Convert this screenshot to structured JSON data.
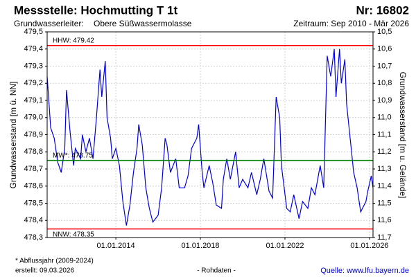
{
  "chart_data": {
    "type": "line",
    "title": "Messstelle: Hochmutting T 1t",
    "number": "Nr: 16802",
    "aquifer_label": "Grundwasserleiter:",
    "aquifer": "Obere Süßwassermolasse",
    "period": "Zeitraum: Sep 2010 - Mär 2026",
    "ylabel": "Grundwasserstand [m ü. NN]",
    "y2label": "Grundwasserstand [m u. Gelände]",
    "footnote": "* Abflussjahr (2009-2024)",
    "created": "erstellt:  09.03.2026",
    "note": "- Rohdaten -",
    "source": "Quelle: www.lfu.bayern.de",
    "grid": true,
    "xlim": [
      "2010-10",
      "2026-03"
    ],
    "xticks": [
      {
        "value": "2014-01-01",
        "label": "01.01.2014"
      },
      {
        "value": "2018-01-01",
        "label": "01.01.2018"
      },
      {
        "value": "2022-01-01",
        "label": "01.01.2022"
      },
      {
        "value": "2026-01-01",
        "label": "01.01.2026"
      }
    ],
    "ylim": [
      478.3,
      479.5
    ],
    "yticks": [
      {
        "value": 478.3,
        "label": "478,3"
      },
      {
        "value": 478.4,
        "label": "478,4"
      },
      {
        "value": 478.5,
        "label": "478,5"
      },
      {
        "value": 478.6,
        "label": "478,6"
      },
      {
        "value": 478.7,
        "label": "478,7"
      },
      {
        "value": 478.8,
        "label": "478,8"
      },
      {
        "value": 478.9,
        "label": "478,9"
      },
      {
        "value": 479.0,
        "label": "479,0"
      },
      {
        "value": 479.1,
        "label": "479,1"
      },
      {
        "value": 479.2,
        "label": "479,2"
      },
      {
        "value": 479.3,
        "label": "479,3"
      },
      {
        "value": 479.4,
        "label": "479,4"
      },
      {
        "value": 479.5,
        "label": "479,5"
      }
    ],
    "y2lim": [
      11.7,
      10.5
    ],
    "y2ticks": [
      {
        "value": 10.5,
        "label": "10,5"
      },
      {
        "value": 10.6,
        "label": "10,6"
      },
      {
        "value": 10.7,
        "label": "10,7"
      },
      {
        "value": 10.8,
        "label": "10,8"
      },
      {
        "value": 10.9,
        "label": "10,9"
      },
      {
        "value": 11.0,
        "label": "11,0"
      },
      {
        "value": 11.1,
        "label": "11,1"
      },
      {
        "value": 11.2,
        "label": "11,2"
      },
      {
        "value": 11.3,
        "label": "11,3"
      },
      {
        "value": 11.4,
        "label": "11,4"
      },
      {
        "value": 11.5,
        "label": "11,5"
      },
      {
        "value": 11.6,
        "label": "11,6"
      },
      {
        "value": 11.7,
        "label": "11,7"
      }
    ],
    "reference_lines": [
      {
        "label": "HHW: 479.42",
        "value": 479.42,
        "color": "#ff0000"
      },
      {
        "label": "MW*: 478.75",
        "value": 478.75,
        "color": "#008000"
      },
      {
        "label": "NNW: 478.35",
        "value": 478.35,
        "color": "#ff0000"
      }
    ],
    "x": [
      "2010-10",
      "2010-12",
      "2011-02",
      "2011-04",
      "2011-06",
      "2011-08",
      "2011-09",
      "2011-11",
      "2012-01",
      "2012-02",
      "2012-05",
      "2012-06",
      "2012-08",
      "2012-10",
      "2012-12",
      "2013-02",
      "2013-04",
      "2013-05",
      "2013-07",
      "2013-08",
      "2013-10",
      "2013-11",
      "2014-01",
      "2014-03",
      "2014-05",
      "2014-07",
      "2014-09",
      "2014-11",
      "2015-01",
      "2015-02",
      "2015-04",
      "2015-06",
      "2015-08",
      "2015-10",
      "2016-01",
      "2016-03",
      "2016-05",
      "2016-06",
      "2016-08",
      "2016-11",
      "2017-01",
      "2017-04",
      "2017-06",
      "2017-08",
      "2017-11",
      "2017-12",
      "2018-02",
      "2018-03",
      "2018-06",
      "2018-08",
      "2018-10",
      "2019-01",
      "2019-02",
      "2019-04",
      "2019-06",
      "2019-09",
      "2019-11",
      "2020-01",
      "2020-04",
      "2020-06",
      "2020-09",
      "2020-11",
      "2021-01",
      "2021-04",
      "2021-06",
      "2021-08",
      "2021-10",
      "2021-11",
      "2022-02",
      "2022-04",
      "2022-06",
      "2022-09",
      "2022-11",
      "2023-02",
      "2023-04",
      "2023-06",
      "2023-09",
      "2023-11",
      "2024-01",
      "2024-03",
      "2024-05",
      "2024-06",
      "2024-08",
      "2024-09",
      "2024-11",
      "2024-12",
      "2025-02",
      "2025-04",
      "2025-06",
      "2025-08",
      "2025-11",
      "2025-12",
      "2026-02",
      "2026-03"
    ],
    "series": [
      {
        "name": "Grundwasserstand",
        "color": "#0000dd",
        "values": [
          479.24,
          478.94,
          478.88,
          478.74,
          478.68,
          478.82,
          479.16,
          478.92,
          478.72,
          478.82,
          478.76,
          478.9,
          478.8,
          478.88,
          478.76,
          479.0,
          479.28,
          479.12,
          479.33,
          479.0,
          478.88,
          478.76,
          478.82,
          478.72,
          478.51,
          478.37,
          478.49,
          478.68,
          478.82,
          478.96,
          478.84,
          478.59,
          478.47,
          478.39,
          478.43,
          478.59,
          478.88,
          478.84,
          478.68,
          478.76,
          478.59,
          478.59,
          478.66,
          478.82,
          478.88,
          478.96,
          478.68,
          478.59,
          478.72,
          478.62,
          478.49,
          478.47,
          478.64,
          478.76,
          478.64,
          478.8,
          478.59,
          478.64,
          478.59,
          478.68,
          478.55,
          478.64,
          478.76,
          478.57,
          478.53,
          479.12,
          479.0,
          478.72,
          478.47,
          478.45,
          478.55,
          478.41,
          478.51,
          478.47,
          478.59,
          478.55,
          478.72,
          478.59,
          479.36,
          479.24,
          479.4,
          479.12,
          479.4,
          479.2,
          479.34,
          479.08,
          478.88,
          478.68,
          478.59,
          478.45,
          478.51,
          478.57,
          478.66,
          478.59
        ]
      }
    ]
  }
}
